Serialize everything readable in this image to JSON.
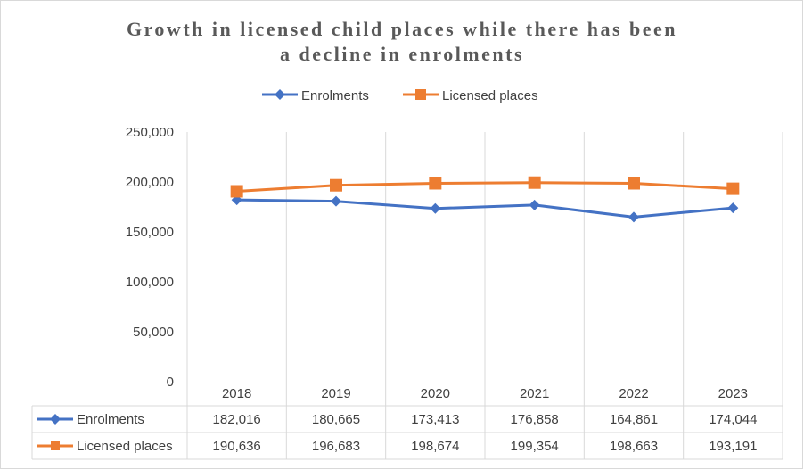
{
  "chart_data": {
    "type": "line",
    "title_lines": [
      "Growth in licensed child places while there has been",
      "a decline in enrolments"
    ],
    "categories": [
      "2018",
      "2019",
      "2020",
      "2021",
      "2022",
      "2023"
    ],
    "series": [
      {
        "name": "Enrolments",
        "color": "#4472C4",
        "marker": "diamond",
        "values": [
          182016,
          180665,
          173413,
          176858,
          164861,
          174044
        ],
        "labels": [
          "182,016",
          "180,665",
          "173,413",
          "176,858",
          "164,861",
          "174,044"
        ]
      },
      {
        "name": "Licensed places",
        "color": "#ED7D31",
        "marker": "square",
        "values": [
          190636,
          196683,
          198674,
          199354,
          198663,
          193191
        ],
        "labels": [
          "190,636",
          "196,683",
          "198,674",
          "199,354",
          "198,663",
          "193,191"
        ]
      }
    ],
    "ylim": [
      0,
      250000
    ],
    "yticks": [
      "0",
      "50,000",
      "100,000",
      "150,000",
      "200,000",
      "250,000"
    ],
    "grid": "vertical",
    "legend": "top-center",
    "data_table": true
  }
}
